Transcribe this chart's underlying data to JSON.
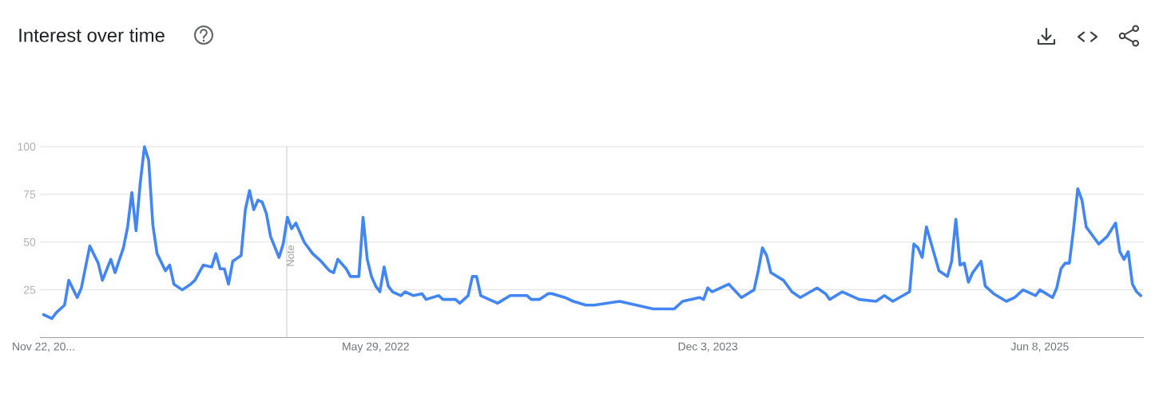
{
  "chart_data": {
    "type": "line",
    "title": "Interest over time",
    "x": [
      "2020-11-22",
      "2020-12-06",
      "2020-12-13",
      "2020-12-27",
      "2021-01-03",
      "2021-01-17",
      "2021-01-24",
      "2021-02-07",
      "2021-02-21",
      "2021-02-28",
      "2021-03-14",
      "2021-03-21",
      "2021-04-04",
      "2021-04-11",
      "2021-04-18",
      "2021-04-25",
      "2021-05-02",
      "2021-05-09",
      "2021-05-16",
      "2021-05-23",
      "2021-05-30",
      "2021-06-13",
      "2021-06-20",
      "2021-06-27",
      "2021-07-11",
      "2021-07-25",
      "2021-08-01",
      "2021-08-15",
      "2021-08-29",
      "2021-09-05",
      "2021-09-12",
      "2021-09-19",
      "2021-09-26",
      "2021-10-03",
      "2021-10-17",
      "2021-10-24",
      "2021-10-31",
      "2021-11-07",
      "2021-11-14",
      "2021-11-21",
      "2021-11-28",
      "2021-12-05",
      "2021-12-19",
      "2021-12-26",
      "2022-01-02",
      "2022-01-09",
      "2022-01-16",
      "2022-01-30",
      "2022-02-13",
      "2022-02-27",
      "2022-03-13",
      "2022-03-20",
      "2022-03-27",
      "2022-04-10",
      "2022-04-17",
      "2022-05-01",
      "2022-05-08",
      "2022-05-15",
      "2022-05-22",
      "2022-05-29",
      "2022-06-05",
      "2022-06-12",
      "2022-06-19",
      "2022-06-26",
      "2022-07-10",
      "2022-07-17",
      "2022-07-31",
      "2022-08-14",
      "2022-08-21",
      "2022-09-11",
      "2022-09-18",
      "2022-10-09",
      "2022-10-16",
      "2022-10-30",
      "2022-11-06",
      "2022-11-13",
      "2022-11-20",
      "2022-12-18",
      "2023-01-08",
      "2023-02-05",
      "2023-02-12",
      "2023-02-26",
      "2023-03-12",
      "2023-03-19",
      "2023-04-09",
      "2023-04-23",
      "2023-05-14",
      "2023-05-28",
      "2023-07-09",
      "2023-08-06",
      "2023-09-03",
      "2023-09-17",
      "2023-10-08",
      "2023-10-22",
      "2023-11-19",
      "2023-11-26",
      "2023-12-03",
      "2023-12-10",
      "2024-01-07",
      "2024-01-28",
      "2024-02-18",
      "2024-02-25",
      "2024-03-03",
      "2024-03-10",
      "2024-03-17",
      "2024-04-07",
      "2024-04-21",
      "2024-05-05",
      "2024-06-02",
      "2024-06-16",
      "2024-06-23",
      "2024-07-14",
      "2024-08-11",
      "2024-09-08",
      "2024-09-22",
      "2024-10-06",
      "2024-11-03",
      "2024-11-10",
      "2024-11-17",
      "2024-11-24",
      "2024-12-01",
      "2024-12-22",
      "2025-01-05",
      "2025-01-12",
      "2025-01-19",
      "2025-01-26",
      "2025-02-02",
      "2025-02-09",
      "2025-02-16",
      "2025-03-02",
      "2025-03-09",
      "2025-03-23",
      "2025-04-13",
      "2025-04-27",
      "2025-05-11",
      "2025-06-01",
      "2025-06-08",
      "2025-06-29",
      "2025-07-06",
      "2025-07-13",
      "2025-07-20",
      "2025-07-27",
      "2025-08-03",
      "2025-08-10",
      "2025-08-17",
      "2025-08-24",
      "2025-09-07",
      "2025-09-14",
      "2025-09-28",
      "2025-10-12",
      "2025-10-19",
      "2025-10-26",
      "2025-11-02",
      "2025-11-09",
      "2025-11-16",
      "2025-11-23"
    ],
    "values": [
      12,
      10,
      13,
      17,
      30,
      21,
      26,
      48,
      39,
      30,
      41,
      34,
      47,
      58,
      76,
      56,
      81,
      100,
      93,
      59,
      44,
      35,
      38,
      28,
      25,
      28,
      30,
      38,
      37,
      44,
      36,
      36,
      28,
      40,
      43,
      67,
      77,
      67,
      72,
      71,
      65,
      53,
      42,
      49,
      63,
      57,
      60,
      50,
      44,
      40,
      35,
      34,
      41,
      36,
      32,
      32,
      63,
      41,
      32,
      27,
      24,
      37,
      27,
      24,
      22,
      24,
      22,
      23,
      20,
      22,
      20,
      20,
      18,
      22,
      32,
      32,
      22,
      18,
      22,
      22,
      20,
      20,
      23,
      23,
      21,
      19,
      17,
      17,
      19,
      17,
      15,
      15,
      15,
      19,
      21,
      20,
      26,
      24,
      28,
      21,
      25,
      35,
      47,
      43,
      34,
      30,
      24,
      21,
      26,
      23,
      20,
      24,
      20,
      19,
      22,
      19,
      24,
      49,
      47,
      42,
      58,
      35,
      32,
      40,
      62,
      38,
      39,
      29,
      34,
      40,
      27,
      23,
      19,
      21,
      25,
      22,
      25,
      21,
      26,
      36,
      39,
      39,
      57,
      78,
      72,
      58,
      52,
      49,
      53,
      60,
      45,
      41,
      45,
      28,
      24,
      22
    ],
    "color": "#4285f4",
    "xlim": [
      "2020-11-16",
      "2025-11-28"
    ],
    "xticks": [
      {
        "value": "2020-11-22",
        "label": "Nov 22, 20..."
      },
      {
        "value": "2022-05-29",
        "label": "May 29, 2022"
      },
      {
        "value": "2023-12-03",
        "label": "Dec 3, 2023"
      },
      {
        "value": "2025-06-08",
        "label": "Jun 8, 2025"
      }
    ],
    "ylim": [
      0,
      100
    ],
    "yticks": [
      25,
      50,
      75,
      100
    ],
    "grid": "y",
    "ref_lines": [
      {
        "axis": "x",
        "value": "2022-01-01",
        "label": "Note",
        "color": "#c8c8c8"
      }
    ]
  }
}
